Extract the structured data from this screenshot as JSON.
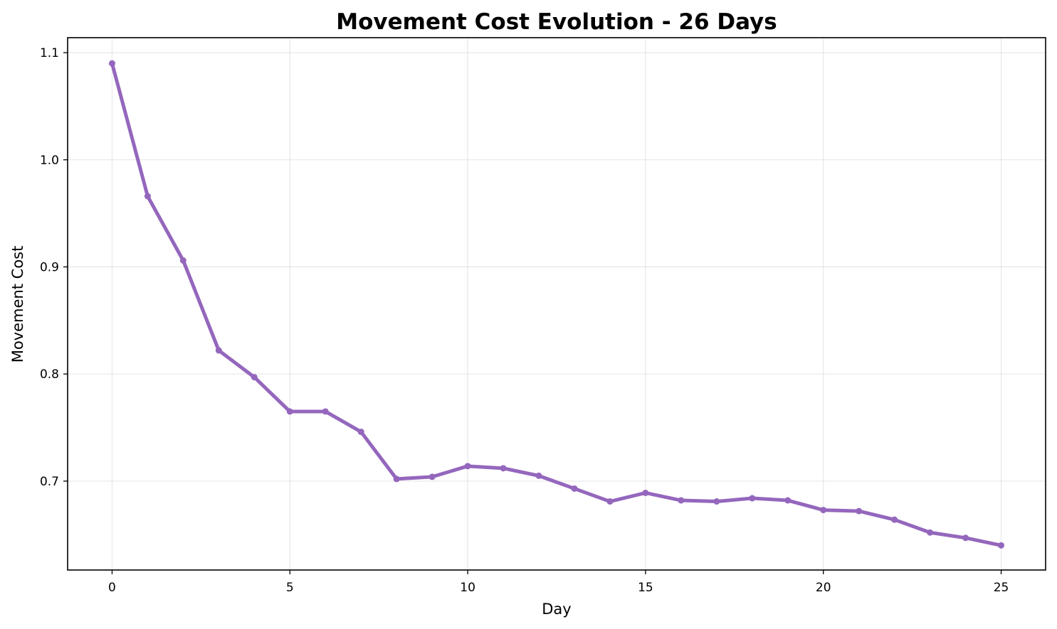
{
  "chart_data": {
    "type": "line",
    "title": "Movement Cost Evolution - 26 Days",
    "xlabel": "Day",
    "ylabel": "Movement Cost",
    "xlim": [
      -1.25,
      26.25
    ],
    "ylim": [
      0.617,
      1.114
    ],
    "xticks": [
      0,
      5,
      10,
      15,
      20,
      25
    ],
    "xtick_labels": [
      "0",
      "5",
      "10",
      "15",
      "20",
      "25"
    ],
    "yticks": [
      0.7,
      0.8,
      0.9,
      1.0,
      1.1
    ],
    "ytick_labels": [
      "0.7",
      "0.8",
      "0.9",
      "1.0",
      "1.1"
    ],
    "grid": true,
    "color": "#9467bd",
    "x": [
      0,
      1,
      2,
      3,
      4,
      5,
      6,
      7,
      8,
      9,
      10,
      11,
      12,
      13,
      14,
      15,
      16,
      17,
      18,
      19,
      20,
      21,
      22,
      23,
      24,
      25
    ],
    "y": [
      1.09,
      0.966,
      0.906,
      0.822,
      0.797,
      0.765,
      0.765,
      0.746,
      0.702,
      0.704,
      0.714,
      0.712,
      0.705,
      0.693,
      0.681,
      0.689,
      0.682,
      0.681,
      0.684,
      0.682,
      0.673,
      0.672,
      0.664,
      0.652,
      0.647,
      0.64
    ]
  }
}
